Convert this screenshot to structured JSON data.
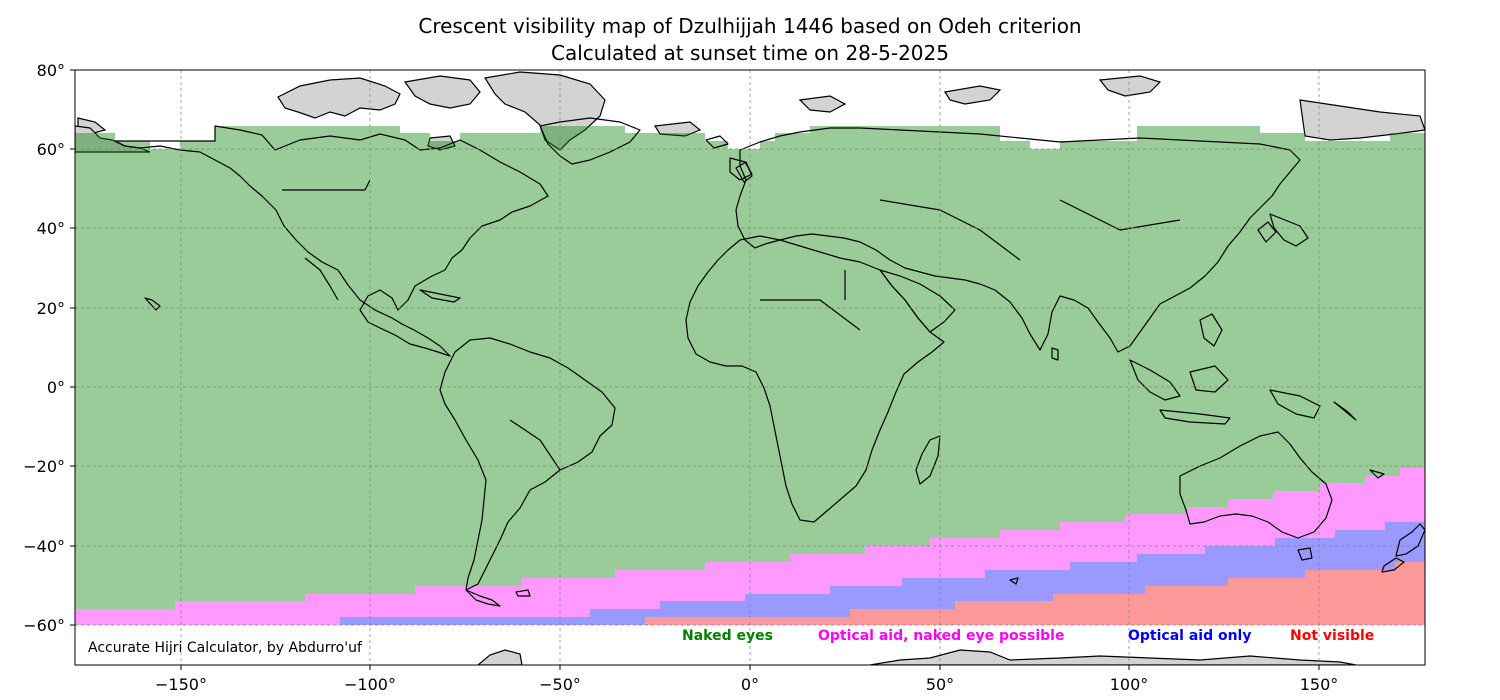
{
  "title": {
    "line1": "Crescent visibility map of Dzulhijjah 1446 based on Odeh criterion",
    "line2": "Calculated at sunset time on 28-5-2025"
  },
  "axes": {
    "x_ticks": [
      "−150°",
      "−100°",
      "−50°",
      "0°",
      "50°",
      "100°",
      "150°"
    ],
    "y_ticks": [
      "80°",
      "60°",
      "40°",
      "20°",
      "0°",
      "−20°",
      "−40°",
      "−60°"
    ]
  },
  "legend": {
    "naked_eyes": "Naked eyes",
    "optical_naked_possible": "Optical aid, naked eye possible",
    "optical_only": "Optical aid only",
    "not_visible": "Not visible"
  },
  "credit": "Accurate Hijri Calculator, by Abdurro'uf",
  "colors": {
    "naked_eyes": "#008000",
    "optical_naked_possible": "#ff00ff",
    "optical_only": "#0000ff",
    "not_visible": "#ff0000",
    "land_polar": "#d3d3d3"
  },
  "chart_data": {
    "type": "map",
    "projection": "equirectangular",
    "xlim": [
      -180,
      180
    ],
    "ylim": [
      -70,
      80
    ],
    "grid": true,
    "zones": [
      {
        "name": "Naked eyes",
        "description": "green band covering most longitudes between about 60°N and the southern band boundary"
      },
      {
        "name": "Optical aid, naked eye possible",
        "description": "magenta band in southern latitudes, approx −56° at −180° rising to approx −20° at 180°"
      },
      {
        "name": "Optical aid only",
        "description": "blue band below magenta, from approx −58° near −110° rising to approx −34° at 180°"
      },
      {
        "name": "Not visible",
        "description": "red band at lowest latitudes from approx −25° longitude eastward, reaching approx −44° at 180°"
      }
    ]
  }
}
